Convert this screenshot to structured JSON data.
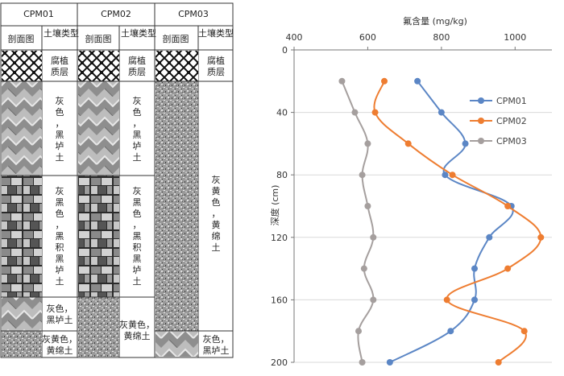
{
  "profile": {
    "sites": [
      "CPM01",
      "CPM02",
      "CPM03"
    ],
    "col_section_label": "剖面图",
    "col_soil_label": "土壤类型",
    "cpm01_soils": [
      "腐植质层",
      "灰色，黑垆土",
      "灰黑色，黑积黑垆土",
      "灰色，黑垆土",
      "灰黄色，黄绵土"
    ],
    "cpm02_soils": [
      "腐植质层",
      "灰色，黑垆土",
      "灰黑色，黑积黑垆土",
      "灰黄色，黄绵土"
    ],
    "cpm03_soils": [
      "腐植质层",
      "灰黄色，黄绵土",
      "灰色，黑垆土"
    ]
  },
  "chart_data": {
    "type": "line",
    "title": "",
    "xlabel": "氟含量 (mg/kg)",
    "ylabel": "深度 (cm)",
    "xlim": [
      400,
      1100
    ],
    "ylim": [
      200,
      0
    ],
    "x_ticks": [
      400,
      600,
      800,
      1000
    ],
    "y_ticks": [
      0,
      40,
      80,
      120,
      160,
      200
    ],
    "x_axis_position": "top",
    "grid": "horizontal",
    "legend_position": "top-right",
    "series": [
      {
        "name": "CPM01",
        "color": "#5b86c5",
        "depth": [
          20,
          40,
          60,
          80,
          100,
          120,
          140,
          160,
          180,
          200
        ],
        "fluorine": [
          735,
          800,
          865,
          810,
          990,
          930,
          890,
          890,
          825,
          660
        ]
      },
      {
        "name": "CPM02",
        "color": "#ee7d31",
        "depth": [
          20,
          40,
          60,
          80,
          100,
          120,
          140,
          160,
          180,
          200
        ],
        "fluorine": [
          645,
          620,
          710,
          830,
          980,
          1070,
          980,
          815,
          1025,
          955
        ]
      },
      {
        "name": "CPM03",
        "color": "#a59f9e",
        "depth": [
          20,
          40,
          60,
          80,
          100,
          120,
          140,
          160,
          180,
          200
        ],
        "fluorine": [
          530,
          565,
          600,
          585,
          600,
          615,
          590,
          615,
          575,
          585
        ]
      }
    ]
  }
}
